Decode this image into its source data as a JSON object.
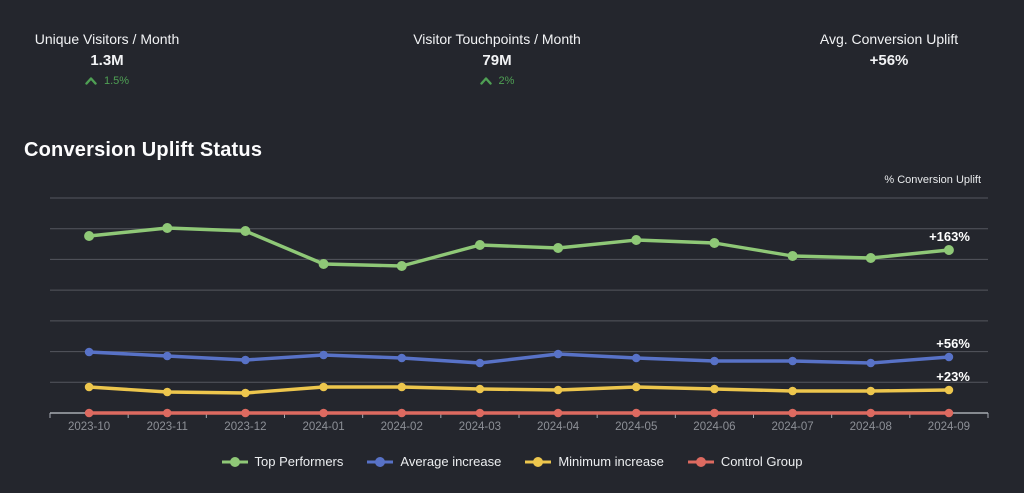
{
  "kpis": [
    {
      "label": "Unique Visitors / Month",
      "value": "1.3M",
      "delta": "1.5%",
      "delta_direction": "up"
    },
    {
      "label": "Visitor Touchpoints / Month",
      "value": "79M",
      "delta": "2%",
      "delta_direction": "up"
    },
    {
      "label": "Avg. Conversion Uplift",
      "value": "+56%",
      "delta": "",
      "delta_direction": ""
    }
  ],
  "section_title": "Conversion Uplift Status",
  "chart_data": {
    "type": "line",
    "title": "Conversion Uplift Status",
    "ylabel": "% Conversion Uplift",
    "xlabel": "",
    "ylim": [
      0,
      215
    ],
    "grid": true,
    "legend_position": "bottom",
    "categories": [
      "2023-10",
      "2023-11",
      "2023-12",
      "2024-01",
      "2024-02",
      "2024-03",
      "2024-04",
      "2024-05",
      "2024-06",
      "2024-07",
      "2024-08",
      "2024-09"
    ],
    "series": [
      {
        "name": "Top Performers",
        "color": "#8fc877",
        "end_label": "+163%",
        "values": [
          177,
          185,
          182,
          149,
          147,
          168,
          165,
          173,
          170,
          157,
          155,
          163
        ]
      },
      {
        "name": "Average increase",
        "color": "#5872c7",
        "end_label": "+56%",
        "values": [
          61,
          57,
          53,
          58,
          55,
          50,
          59,
          55,
          52,
          52,
          50,
          56
        ]
      },
      {
        "name": "Minimum increase",
        "color": "#edc64d",
        "end_label": "+23%",
        "values": [
          26,
          21,
          20,
          26,
          26,
          24,
          23,
          26,
          24,
          22,
          22,
          23
        ]
      },
      {
        "name": "Control Group",
        "color": "#dd6a60",
        "end_label": "",
        "values": [
          0,
          0,
          0,
          0,
          0,
          0,
          0,
          0,
          0,
          0,
          0,
          0
        ]
      }
    ]
  },
  "colors": {
    "background": "#24262d",
    "delta_green": "#4fa054",
    "gridline": "#54565e",
    "axis": "#a6abb2",
    "tick_label": "#8d9097",
    "end_label": "#ffffff"
  }
}
